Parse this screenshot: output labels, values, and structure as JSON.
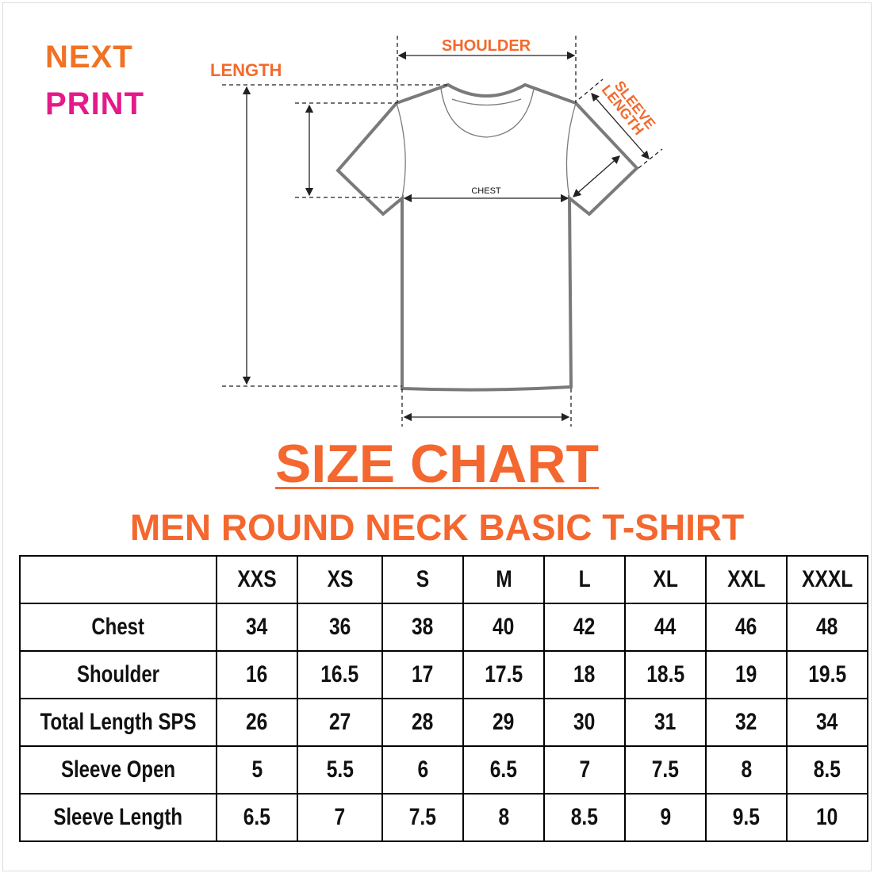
{
  "logo": {
    "line1": "NEXT",
    "line2": "PRINT"
  },
  "diagram": {
    "labels": {
      "length": "LENGTH",
      "shoulder": "SHOULDER",
      "sleeve_length_1": "SLEEVE",
      "sleeve_length_2": "LENGTH",
      "chest": "CHEST"
    },
    "colors": {
      "label": "#f26a2e",
      "outline": "#7a7a7a"
    }
  },
  "title": "SIZE CHART",
  "subtitle": "MEN ROUND NECK BASIC T-SHIRT",
  "table": {
    "headers": [
      "",
      "XXS",
      "XS",
      "S",
      "M",
      "L",
      "XL",
      "XXL",
      "XXXL"
    ],
    "rows": [
      {
        "label": "Chest",
        "values": [
          "34",
          "36",
          "38",
          "40",
          "42",
          "44",
          "46",
          "48"
        ]
      },
      {
        "label": "Shoulder",
        "values": [
          "16",
          "16.5",
          "17",
          "17.5",
          "18",
          "18.5",
          "19",
          "19.5"
        ]
      },
      {
        "label": "Total Length SPS",
        "values": [
          "26",
          "27",
          "28",
          "29",
          "30",
          "31",
          "32",
          "34"
        ]
      },
      {
        "label": "Sleeve Open",
        "values": [
          "5",
          "5.5",
          "6",
          "6.5",
          "7",
          "7.5",
          "8",
          "8.5"
        ]
      },
      {
        "label": "Sleeve Length",
        "values": [
          "6.5",
          "7",
          "7.5",
          "8",
          "8.5",
          "9",
          "9.5",
          "10"
        ]
      }
    ]
  }
}
